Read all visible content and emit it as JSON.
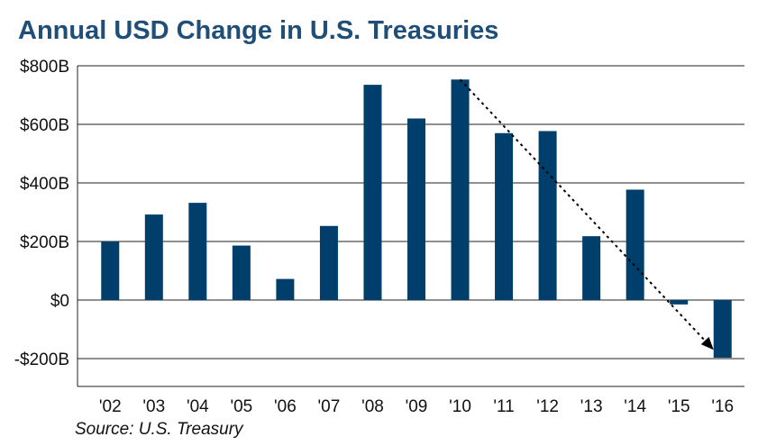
{
  "chart_data": {
    "type": "bar",
    "title": "Annual USD Change in U.S. Treasuries",
    "source": "Source: U.S. Treasury",
    "categories": [
      "'02",
      "'03",
      "'04",
      "'05",
      "'06",
      "'07",
      "'08",
      "'09",
      "'10",
      "'11",
      "'12",
      "'13",
      "'14",
      "'15",
      "'16"
    ],
    "values": [
      200,
      292,
      332,
      186,
      72,
      253,
      735,
      620,
      753,
      570,
      577,
      218,
      377,
      -15,
      -197
    ],
    "yticks": [
      800,
      600,
      400,
      200,
      0,
      -200
    ],
    "ytick_labels": [
      "$800B",
      "$600B",
      "$400B",
      "$200B",
      "$0",
      "-$200B"
    ],
    "ylim": [
      -295,
      800
    ],
    "grid": true,
    "bar_color": "#003f6b",
    "trend_arrow": {
      "from_category": "'10",
      "from_value": 753,
      "to_category": "'16",
      "to_value": -170,
      "style": "dotted"
    }
  }
}
